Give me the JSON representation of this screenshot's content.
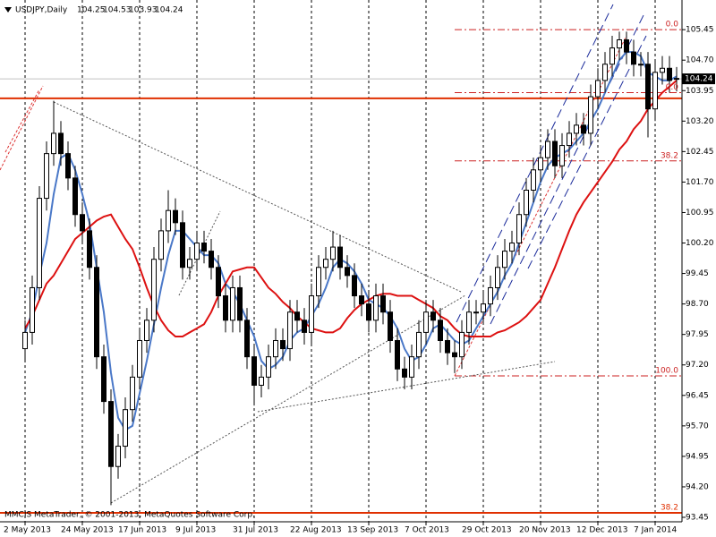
{
  "chart_data": {
    "type": "candlestick",
    "symbol": "USDJPY,Daily",
    "categories": [
      "2 May 2013",
      null,
      null,
      null,
      null,
      null,
      null,
      null,
      "24 May 2013",
      null,
      null,
      null,
      null,
      null,
      null,
      null,
      "17 Jun 2013",
      null,
      null,
      null,
      null,
      null,
      null,
      null,
      "9 Jul 2013",
      null,
      null,
      null,
      null,
      null,
      null,
      null,
      "31 Jul 2013",
      null,
      null,
      null,
      null,
      null,
      null,
      null,
      "22 Aug 2013",
      null,
      null,
      null,
      null,
      null,
      null,
      null,
      "13 Sep 2013",
      null,
      null,
      null,
      null,
      null,
      null,
      null,
      "7 Oct 2013",
      null,
      null,
      null,
      null,
      null,
      null,
      null,
      "29 Oct 2013",
      null,
      null,
      null,
      null,
      null,
      null,
      null,
      "20 Nov 2013",
      null,
      null,
      null,
      null,
      null,
      null,
      null,
      "12 Dec 2013",
      null,
      null,
      null,
      null,
      null,
      null,
      null,
      "7 Jan 2014",
      null,
      null,
      null
    ],
    "open": [
      97.6,
      98.0,
      99.1,
      101.3,
      102.4,
      102.9,
      102.4,
      101.8,
      100.9,
      100.5,
      99.6,
      97.4,
      96.3,
      94.7,
      95.2,
      96.1,
      96.9,
      97.8,
      98.3,
      99.8,
      100.5,
      101.0,
      100.7,
      99.6,
      99.8,
      100.2,
      100.0,
      99.6,
      98.9,
      98.3,
      99.1,
      98.3,
      97.4,
      96.7,
      96.9,
      97.4,
      97.8,
      97.6,
      98.5,
      98.3,
      98.0,
      98.9,
      99.6,
      99.8,
      100.1,
      99.6,
      99.4,
      98.9,
      98.7,
      98.3,
      98.9,
      98.5,
      97.8,
      97.1,
      96.9,
      97.4,
      98.0,
      98.5,
      98.3,
      97.8,
      97.5,
      97.4,
      98.0,
      98.5,
      98.5,
      98.7,
      99.1,
      99.6,
      100.0,
      100.2,
      100.9,
      101.5,
      102.0,
      102.3,
      102.7,
      102.1,
      102.6,
      102.9,
      103.1,
      102.9,
      103.8,
      104.2,
      104.6,
      105.0,
      105.2,
      104.9,
      104.6,
      104.6,
      103.5,
      104.4,
      104.5,
      104.25
    ],
    "high": [
      98.3,
      99.4,
      101.6,
      102.7,
      103.7,
      103.2,
      102.7,
      102.1,
      101.2,
      100.8,
      99.9,
      97.7,
      96.6,
      95.5,
      96.4,
      97.2,
      98.1,
      98.6,
      100.1,
      100.8,
      101.5,
      101.3,
      101.0,
      100.1,
      100.5,
      100.5,
      100.3,
      99.9,
      99.2,
      99.4,
      99.4,
      98.6,
      97.7,
      97.2,
      97.7,
      98.1,
      98.1,
      98.8,
      98.8,
      98.6,
      99.2,
      99.9,
      100.1,
      100.5,
      100.4,
      99.9,
      99.7,
      99.2,
      99.0,
      99.2,
      99.2,
      98.8,
      98.1,
      97.4,
      97.7,
      98.3,
      98.8,
      98.8,
      98.6,
      98.1,
      97.8,
      98.3,
      98.8,
      98.8,
      99.0,
      99.4,
      99.9,
      100.3,
      100.5,
      101.2,
      101.8,
      102.3,
      102.6,
      103.0,
      103.0,
      102.9,
      103.2,
      103.4,
      103.4,
      104.1,
      104.5,
      104.9,
      105.3,
      105.4,
      105.4,
      105.2,
      104.9,
      104.9,
      104.7,
      104.8,
      104.8,
      104.53
    ],
    "low": [
      97.3,
      97.7,
      98.8,
      101.0,
      102.1,
      102.1,
      101.5,
      100.6,
      100.2,
      99.3,
      97.1,
      96.0,
      93.75,
      94.4,
      94.9,
      95.8,
      96.6,
      97.5,
      98.0,
      99.5,
      100.2,
      100.4,
      99.3,
      99.3,
      99.5,
      99.7,
      99.3,
      98.6,
      98.0,
      98.0,
      98.0,
      97.1,
      96.2,
      96.4,
      96.6,
      97.1,
      97.3,
      97.3,
      98.0,
      97.7,
      97.7,
      98.6,
      99.3,
      99.5,
      99.3,
      99.1,
      98.6,
      98.4,
      98.0,
      98.0,
      98.2,
      97.5,
      96.8,
      96.6,
      96.6,
      97.1,
      97.7,
      98.0,
      97.5,
      97.2,
      97.0,
      97.1,
      97.7,
      98.2,
      98.2,
      98.4,
      98.8,
      99.3,
      99.7,
      99.9,
      100.6,
      101.2,
      101.7,
      102.0,
      101.8,
      101.8,
      102.3,
      102.6,
      102.6,
      102.6,
      103.5,
      103.9,
      104.3,
      104.7,
      104.6,
      104.3,
      104.3,
      102.8,
      103.2,
      104.1,
      103.9,
      103.93
    ],
    "close": [
      98.0,
      99.1,
      101.3,
      102.4,
      102.9,
      102.4,
      101.8,
      100.9,
      100.5,
      99.6,
      97.4,
      96.3,
      94.7,
      95.2,
      96.1,
      96.9,
      97.8,
      98.3,
      99.8,
      100.5,
      101.0,
      100.7,
      99.6,
      99.8,
      100.2,
      100.0,
      99.6,
      98.9,
      98.3,
      99.1,
      98.3,
      97.4,
      96.7,
      96.9,
      97.4,
      97.8,
      97.6,
      98.5,
      98.3,
      98.0,
      98.9,
      99.6,
      99.8,
      100.1,
      99.6,
      99.4,
      98.9,
      98.7,
      98.3,
      98.9,
      98.5,
      97.8,
      97.1,
      96.9,
      97.4,
      98.0,
      98.5,
      98.3,
      97.8,
      97.5,
      97.4,
      98.0,
      98.5,
      98.5,
      98.7,
      99.1,
      99.6,
      100.0,
      100.2,
      100.9,
      101.5,
      102.0,
      102.3,
      102.7,
      102.1,
      102.6,
      102.9,
      103.1,
      102.9,
      103.8,
      104.2,
      104.6,
      105.0,
      105.2,
      104.9,
      104.6,
      104.6,
      103.5,
      104.4,
      104.5,
      104.2,
      104.24
    ],
    "up_color": "#ffffff",
    "down_color": "#000000",
    "overlays": [
      {
        "color": "#4a78c8",
        "values": [
          98.0,
          98.5,
          99.4,
          100.2,
          101.4,
          102.3,
          102.4,
          102.0,
          101.4,
          100.7,
          99.6,
          98.5,
          97.0,
          95.9,
          95.6,
          95.7,
          96.5,
          97.3,
          98.2,
          99.1,
          99.9,
          100.5,
          100.5,
          100.3,
          100.1,
          99.9,
          99.9,
          99.7,
          99.2,
          99.0,
          98.7,
          98.3,
          97.9,
          97.3,
          97.1,
          97.2,
          97.4,
          97.8,
          98.0,
          98.1,
          98.4,
          98.7,
          99.1,
          99.6,
          99.8,
          99.7,
          99.5,
          99.2,
          98.8,
          98.7,
          98.6,
          98.4,
          98.1,
          97.6,
          97.3,
          97.4,
          97.7,
          98.1,
          98.2,
          98.0,
          97.8,
          97.7,
          97.8,
          98.1,
          98.4,
          98.7,
          99.0,
          99.4,
          99.7,
          100.2,
          100.7,
          101.2,
          101.7,
          102.1,
          102.3,
          102.4,
          102.5,
          102.7,
          102.9,
          103.2,
          103.5,
          103.9,
          104.3,
          104.7,
          104.9,
          104.9,
          104.8,
          104.4,
          104.3,
          104.2,
          104.2,
          104.3
        ]
      },
      {
        "color": "#dd1111",
        "values": [
          98.1,
          98.4,
          98.8,
          99.2,
          99.4,
          99.7,
          100.0,
          100.3,
          100.45,
          100.6,
          100.75,
          100.85,
          100.9,
          100.6,
          100.3,
          100.05,
          99.6,
          99.1,
          98.65,
          98.3,
          98.05,
          97.9,
          97.9,
          98.0,
          98.1,
          98.2,
          98.5,
          98.9,
          99.2,
          99.5,
          99.55,
          99.6,
          99.6,
          99.35,
          99.1,
          98.95,
          98.75,
          98.6,
          98.4,
          98.25,
          98.1,
          98.05,
          98.0,
          98.0,
          98.1,
          98.35,
          98.55,
          98.7,
          98.8,
          98.9,
          98.95,
          98.95,
          98.9,
          98.9,
          98.9,
          98.8,
          98.7,
          98.6,
          98.4,
          98.3,
          98.1,
          97.95,
          97.9,
          97.9,
          97.9,
          97.9,
          98.0,
          98.05,
          98.15,
          98.25,
          98.4,
          98.6,
          98.8,
          99.2,
          99.6,
          100.05,
          100.5,
          100.9,
          101.2,
          101.45,
          101.7,
          101.95,
          102.2,
          102.5,
          102.7,
          103.0,
          103.2,
          103.5,
          103.7,
          103.9,
          104.05,
          104.2
        ]
      }
    ],
    "ylim": [
      93.34,
      106.18
    ],
    "yticks": [
      105.45,
      {
        "value": 104.7,
        "label": "104.70"
      },
      103.95,
      {
        "value": 103.2,
        "label": "103.20"
      },
      102.45,
      {
        "value": 101.7,
        "label": "101.70"
      },
      100.95,
      {
        "value": 100.2,
        "label": "100.20"
      },
      99.45,
      {
        "value": 98.7,
        "label": "98.70"
      },
      97.95,
      {
        "value": 97.2,
        "label": "97.20"
      },
      96.45,
      {
        "value": 95.7,
        "label": "95.70"
      },
      94.95,
      {
        "value": 94.2,
        "label": "94.20"
      },
      93.45
    ],
    "level_line": {
      "value": 103.76,
      "color": "#e03000"
    },
    "fibo_levels": [
      {
        "ratio": "0.0",
        "price": 105.45
      },
      {
        "ratio": "0.0",
        "price": 103.9
      },
      {
        "ratio": "38.2",
        "price": 102.22
      },
      {
        "ratio": "100.0",
        "price": 96.93
      }
    ],
    "fibo_color": "#cc2222",
    "bottom_level": {
      "ratio": "38.2",
      "price": 93.56,
      "color": "#e03000"
    },
    "footer": "MMCIS MetaTrader, © 2001-2013, MetaQuotes Software Corp."
  }
}
